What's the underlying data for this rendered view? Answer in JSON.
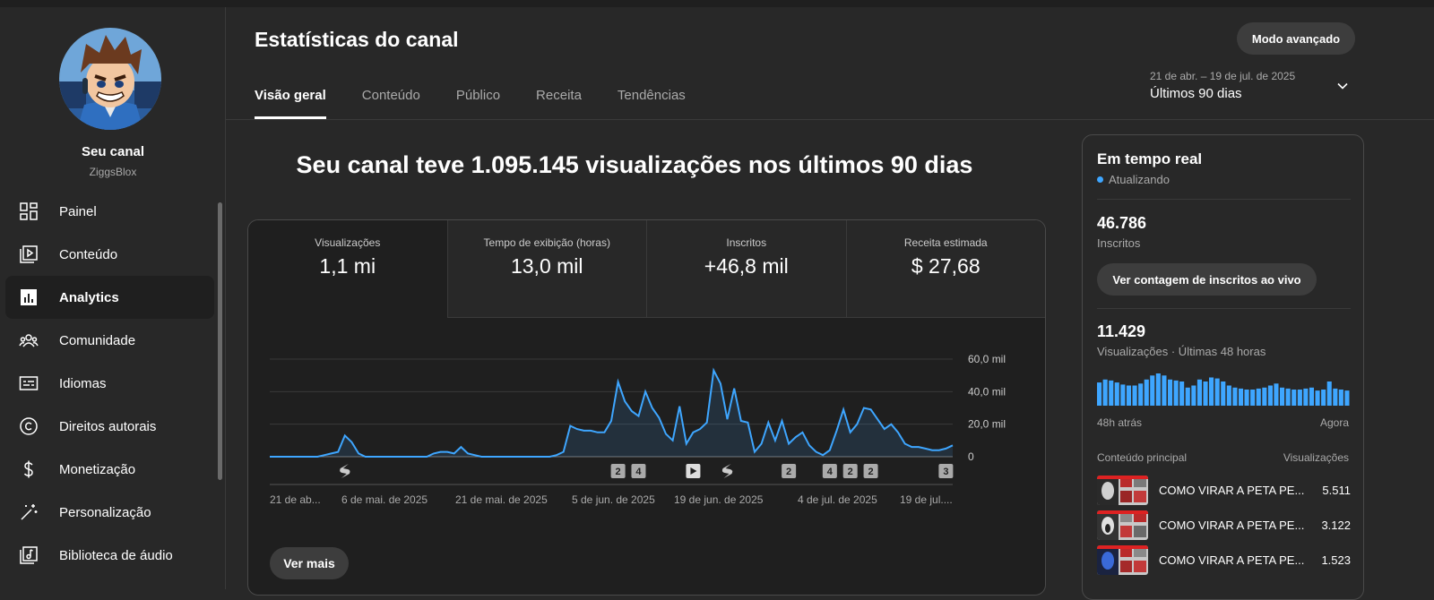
{
  "sidebar": {
    "channel_name": "Seu canal",
    "channel_handle": "ZiggsBlox",
    "items": [
      {
        "label": "Painel",
        "icon": "dashboard-icon",
        "active": false
      },
      {
        "label": "Conteúdo",
        "icon": "content-icon",
        "active": false
      },
      {
        "label": "Analytics",
        "icon": "analytics-icon",
        "active": true
      },
      {
        "label": "Comunidade",
        "icon": "community-icon",
        "active": false
      },
      {
        "label": "Idiomas",
        "icon": "subtitles-icon",
        "active": false
      },
      {
        "label": "Direitos autorais",
        "icon": "copyright-icon",
        "active": false
      },
      {
        "label": "Monetização",
        "icon": "dollar-icon",
        "active": false
      },
      {
        "label": "Personalização",
        "icon": "magic-wand-icon",
        "active": false
      },
      {
        "label": "Biblioteca de áudio",
        "icon": "audio-library-icon",
        "active": false
      }
    ]
  },
  "header": {
    "title": "Estatísticas do canal",
    "advanced_button": "Modo avançado",
    "tabs": [
      {
        "label": "Visão geral",
        "active": true
      },
      {
        "label": "Conteúdo",
        "active": false
      },
      {
        "label": "Público",
        "active": false
      },
      {
        "label": "Receita",
        "active": false
      },
      {
        "label": "Tendências",
        "active": false
      }
    ],
    "date_range": "21 de abr. – 19 de jul. de 2025",
    "period": "Últimos 90 dias"
  },
  "main": {
    "headline": "Seu canal teve 1.095.145 visualizações nos últimos 90 dias",
    "metrics": [
      {
        "label": "Visualizações",
        "value": "1,1 mi"
      },
      {
        "label": "Tempo de exibição (horas)",
        "value": "13,0 mil"
      },
      {
        "label": "Inscritos",
        "value": "+46,8 mil"
      },
      {
        "label": "Receita estimada",
        "value": "$ 27,68"
      }
    ],
    "see_more": "Ver mais"
  },
  "chart_data": {
    "type": "area",
    "series": [
      {
        "values": [
          0,
          0,
          0,
          0,
          0,
          0,
          0,
          0,
          1,
          2,
          3,
          13,
          9,
          2,
          0,
          0,
          0,
          0,
          0,
          0,
          0,
          0,
          0,
          0,
          2,
          3,
          3,
          2,
          6,
          2,
          1,
          0,
          0,
          0,
          0,
          0,
          0,
          0,
          0,
          0,
          0,
          0,
          1,
          3,
          19,
          17,
          16,
          16,
          15,
          15,
          22,
          46,
          34,
          28,
          25,
          40,
          30,
          24,
          14,
          10,
          31,
          8,
          15,
          17,
          21,
          53,
          45,
          23,
          42,
          22,
          21,
          3,
          8,
          21,
          10,
          22,
          8,
          12,
          15,
          7,
          3,
          1,
          4,
          16,
          29,
          15,
          20,
          30,
          29,
          23,
          17,
          20,
          15,
          8,
          6,
          6,
          5,
          4,
          4,
          5,
          7
        ]
      }
    ],
    "x_tick_labels": [
      "21 de ab...",
      "6 de mai. de 2025",
      "21 de mai. de 2025",
      "5 de jun. de 2025",
      "19 de jun. de 2025",
      "4 de jul. de 2025",
      "19 de jul...."
    ],
    "y_tick_labels": [
      "60,0 mil",
      "40,0 mil",
      "20,0 mil",
      "0"
    ],
    "ylim": [
      0,
      60000
    ],
    "color": "#3ea6ff",
    "markers": [
      {
        "index": 11,
        "kind": "shorts"
      },
      {
        "index": 51,
        "kind": "badge",
        "label": "2"
      },
      {
        "index": 54,
        "kind": "badge",
        "label": "4"
      },
      {
        "index": 62,
        "kind": "play"
      },
      {
        "index": 67,
        "kind": "shorts"
      },
      {
        "index": 76,
        "kind": "badge",
        "label": "2"
      },
      {
        "index": 82,
        "kind": "badge",
        "label": "4"
      },
      {
        "index": 85,
        "kind": "badge",
        "label": "2"
      },
      {
        "index": 88,
        "kind": "badge",
        "label": "2"
      },
      {
        "index": 99,
        "kind": "badge",
        "label": "3"
      }
    ]
  },
  "realtime": {
    "title": "Em tempo real",
    "status": "Atualizando",
    "subscribers_value": "46.786",
    "subscribers_label": "Inscritos",
    "live_button": "Ver contagem de inscritos ao vivo",
    "views_value": "11.429",
    "views_label": "Visualizações · Últimas 48 horas",
    "axis_left": "48h atrás",
    "axis_right": "Agora",
    "content_header": "Conteúdo principal",
    "views_header": "Visualizações",
    "bars": [
      230,
      260,
      250,
      230,
      210,
      200,
      200,
      220,
      260,
      300,
      320,
      300,
      260,
      250,
      240,
      180,
      200,
      260,
      240,
      280,
      270,
      240,
      200,
      180,
      170,
      160,
      160,
      170,
      180,
      200,
      220,
      180,
      170,
      160,
      160,
      170,
      180,
      150,
      160,
      240,
      170,
      160,
      150
    ],
    "rows": [
      {
        "title": "COMO VIRAR A PETA PE...",
        "views": "5.511"
      },
      {
        "title": "COMO VIRAR A PETA PE...",
        "views": "3.122"
      },
      {
        "title": "COMO VIRAR A PETA PE...",
        "views": "1.523"
      }
    ]
  }
}
